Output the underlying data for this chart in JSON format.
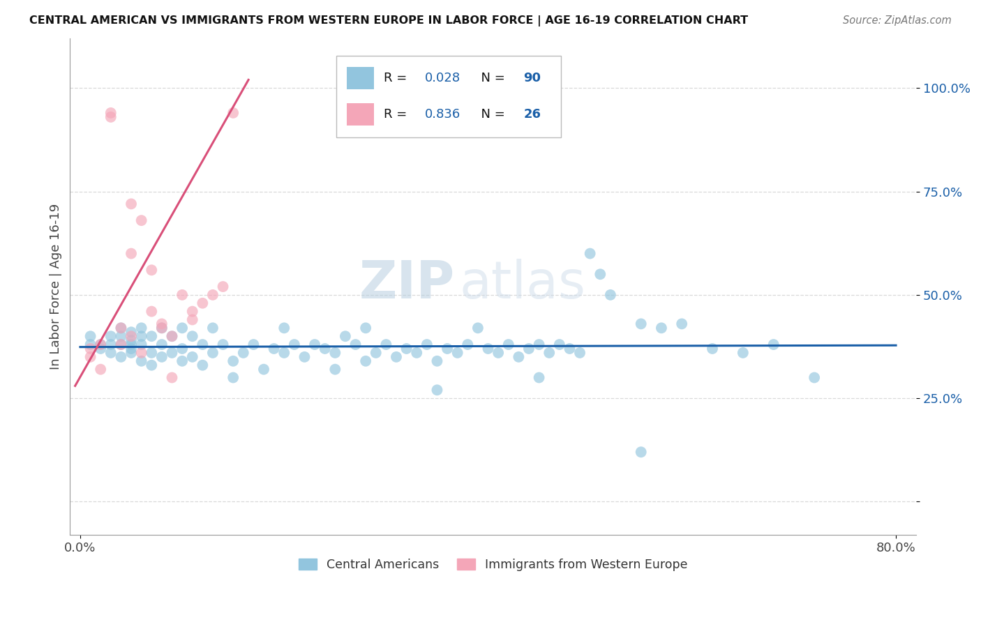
{
  "title": "CENTRAL AMERICAN VS IMMIGRANTS FROM WESTERN EUROPE IN LABOR FORCE | AGE 16-19 CORRELATION CHART",
  "source": "Source: ZipAtlas.com",
  "ylabel": "In Labor Force | Age 16-19",
  "xlim": [
    -0.01,
    0.82
  ],
  "ylim": [
    -0.08,
    1.12
  ],
  "x_ticks": [
    0.0,
    0.8
  ],
  "x_tick_labels": [
    "0.0%",
    "80.0%"
  ],
  "y_ticks": [
    0.0,
    0.25,
    0.5,
    0.75,
    1.0
  ],
  "y_tick_labels": [
    "",
    "25.0%",
    "50.0%",
    "75.0%",
    "100.0%"
  ],
  "legend_labels": [
    "Central Americans",
    "Immigrants from Western Europe"
  ],
  "R_blue": 0.028,
  "N_blue": 90,
  "R_pink": 0.836,
  "N_pink": 26,
  "blue_color": "#92c5de",
  "pink_color": "#f4a6b8",
  "blue_line_color": "#1a5fa8",
  "pink_line_color": "#d94f79",
  "watermark_zip": "ZIP",
  "watermark_atlas": "atlas",
  "watermark_color": "#d8e4f0",
  "background_color": "#ffffff",
  "grid_color": "#d9d9d9",
  "blue_scatter_x": [
    0.01,
    0.01,
    0.02,
    0.02,
    0.03,
    0.03,
    0.03,
    0.04,
    0.04,
    0.04,
    0.04,
    0.05,
    0.05,
    0.05,
    0.05,
    0.05,
    0.06,
    0.06,
    0.06,
    0.06,
    0.07,
    0.07,
    0.07,
    0.08,
    0.08,
    0.08,
    0.09,
    0.09,
    0.1,
    0.1,
    0.1,
    0.11,
    0.11,
    0.12,
    0.12,
    0.13,
    0.13,
    0.14,
    0.15,
    0.16,
    0.17,
    0.18,
    0.19,
    0.2,
    0.2,
    0.21,
    0.22,
    0.23,
    0.24,
    0.25,
    0.26,
    0.27,
    0.28,
    0.28,
    0.29,
    0.3,
    0.31,
    0.32,
    0.33,
    0.34,
    0.35,
    0.36,
    0.37,
    0.38,
    0.39,
    0.4,
    0.41,
    0.42,
    0.43,
    0.44,
    0.45,
    0.46,
    0.47,
    0.48,
    0.49,
    0.5,
    0.51,
    0.52,
    0.55,
    0.57,
    0.59,
    0.62,
    0.65,
    0.68,
    0.55,
    0.45,
    0.35,
    0.25,
    0.15,
    0.72
  ],
  "blue_scatter_y": [
    0.38,
    0.4,
    0.37,
    0.38,
    0.36,
    0.38,
    0.4,
    0.35,
    0.38,
    0.4,
    0.42,
    0.37,
    0.38,
    0.39,
    0.41,
    0.36,
    0.34,
    0.38,
    0.4,
    0.42,
    0.33,
    0.36,
    0.4,
    0.35,
    0.38,
    0.42,
    0.36,
    0.4,
    0.34,
    0.37,
    0.42,
    0.35,
    0.4,
    0.33,
    0.38,
    0.36,
    0.42,
    0.38,
    0.34,
    0.36,
    0.38,
    0.32,
    0.37,
    0.36,
    0.42,
    0.38,
    0.35,
    0.38,
    0.37,
    0.36,
    0.4,
    0.38,
    0.34,
    0.42,
    0.36,
    0.38,
    0.35,
    0.37,
    0.36,
    0.38,
    0.34,
    0.37,
    0.36,
    0.38,
    0.42,
    0.37,
    0.36,
    0.38,
    0.35,
    0.37,
    0.38,
    0.36,
    0.38,
    0.37,
    0.36,
    0.6,
    0.55,
    0.5,
    0.43,
    0.42,
    0.43,
    0.37,
    0.36,
    0.38,
    0.12,
    0.3,
    0.27,
    0.32,
    0.3,
    0.3
  ],
  "pink_scatter_x": [
    0.01,
    0.01,
    0.02,
    0.02,
    0.03,
    0.03,
    0.04,
    0.04,
    0.05,
    0.05,
    0.05,
    0.06,
    0.06,
    0.07,
    0.07,
    0.08,
    0.08,
    0.09,
    0.09,
    0.1,
    0.11,
    0.11,
    0.12,
    0.13,
    0.14,
    0.15
  ],
  "pink_scatter_y": [
    0.37,
    0.35,
    0.38,
    0.32,
    0.94,
    0.93,
    0.38,
    0.42,
    0.4,
    0.72,
    0.6,
    0.36,
    0.68,
    0.56,
    0.46,
    0.43,
    0.42,
    0.4,
    0.3,
    0.5,
    0.44,
    0.46,
    0.48,
    0.5,
    0.52,
    0.94
  ],
  "blue_line_x": [
    0.0,
    0.8
  ],
  "blue_line_y": [
    0.374,
    0.378
  ],
  "pink_line_x": [
    -0.005,
    0.165
  ],
  "pink_line_y": [
    0.28,
    1.02
  ]
}
